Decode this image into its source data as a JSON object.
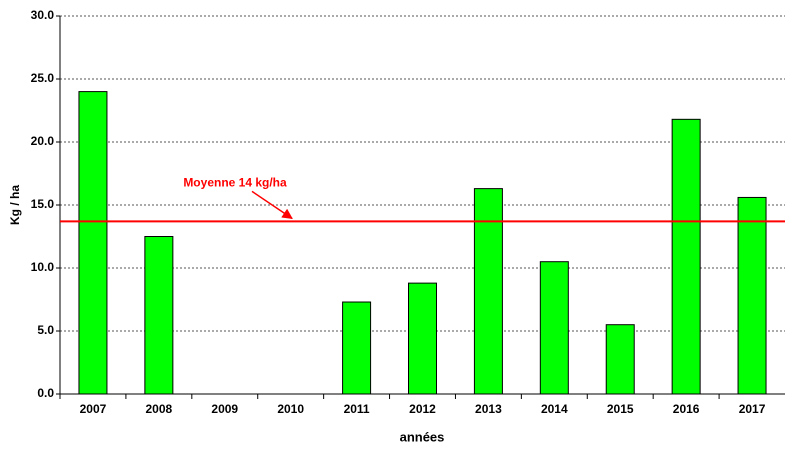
{
  "chart_data": {
    "type": "bar",
    "x_label": "années",
    "y_label": "Kg / ha",
    "categories": [
      "2007",
      "2008",
      "2009",
      "2010",
      "2011",
      "2012",
      "2013",
      "2014",
      "2015",
      "2016",
      "2017"
    ],
    "values": [
      24.0,
      12.5,
      0,
      0,
      7.3,
      8.8,
      16.3,
      10.5,
      5.5,
      21.8,
      15.6
    ],
    "color": "#00ff00",
    "ylim": [
      0,
      30
    ],
    "yticks": [
      {
        "value": 0,
        "label": "0.0"
      },
      {
        "value": 5,
        "label": "5.0"
      },
      {
        "value": 10,
        "label": "10.0"
      },
      {
        "value": 15,
        "label": "15.0"
      },
      {
        "value": 20,
        "label": "20.0"
      },
      {
        "value": 25,
        "label": "25.0"
      },
      {
        "value": 30,
        "label": "30.0"
      }
    ],
    "grid": true,
    "reference_line": {
      "value": 13.7,
      "label": "Moyenne 14 kg/ha",
      "color": "#ff0000"
    }
  }
}
